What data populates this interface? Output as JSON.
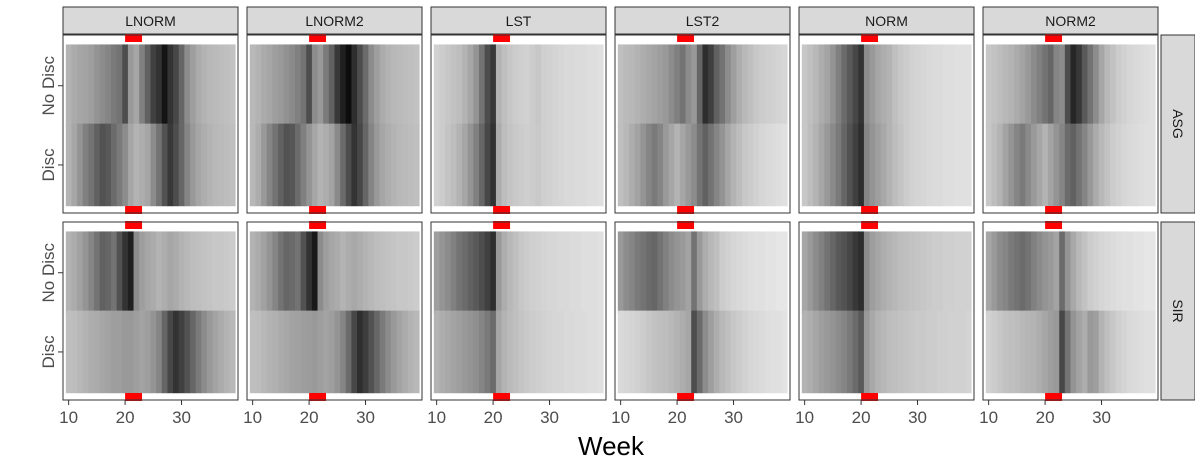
{
  "chart_data": {
    "type": "heatmap",
    "xlabel": "Week",
    "ylabel": "",
    "x_ticks": [
      10,
      20,
      30
    ],
    "xlim": [
      9,
      40
    ],
    "week_range": [
      10,
      39
    ],
    "highlight_window": [
      20,
      23
    ],
    "highlight_color": "#ff0000",
    "columns": [
      "LNORM",
      "LNORM2",
      "LST",
      "LST2",
      "NORM",
      "NORM2"
    ],
    "rows": [
      "ASG",
      "SIR"
    ],
    "row_categories": [
      "No Disc",
      "Disc"
    ],
    "colors": {
      "strip_bg": "#d9d9d9",
      "panel_border": "#333333",
      "cell_low": "#ffffff",
      "cell_high": "#000000"
    },
    "value_scale": "0 = white, 1 = black",
    "panels": {
      "ASG": {
        "LNORM": {
          "No Disc": [
            0.3,
            0.33,
            0.35,
            0.36,
            0.38,
            0.42,
            0.45,
            0.48,
            0.52,
            0.55,
            0.7,
            0.4,
            0.35,
            0.5,
            0.62,
            0.75,
            0.8,
            0.92,
            0.8,
            0.72,
            0.6,
            0.45,
            0.38,
            0.33,
            0.3,
            0.28,
            0.27,
            0.26,
            0.25,
            0.24
          ],
          "Disc": [
            0.3,
            0.35,
            0.42,
            0.5,
            0.55,
            0.62,
            0.68,
            0.65,
            0.58,
            0.52,
            0.45,
            0.35,
            0.3,
            0.32,
            0.35,
            0.45,
            0.55,
            0.68,
            0.78,
            0.7,
            0.6,
            0.48,
            0.4,
            0.35,
            0.32,
            0.3,
            0.28,
            0.27,
            0.26,
            0.25
          ]
        },
        "LNORM2": {
          "No Disc": [
            0.28,
            0.3,
            0.33,
            0.35,
            0.38,
            0.4,
            0.43,
            0.46,
            0.5,
            0.55,
            0.7,
            0.45,
            0.4,
            0.52,
            0.62,
            0.78,
            0.88,
            0.95,
            0.82,
            0.7,
            0.58,
            0.45,
            0.38,
            0.33,
            0.3,
            0.28,
            0.27,
            0.26,
            0.25,
            0.24
          ],
          "Disc": [
            0.28,
            0.32,
            0.4,
            0.48,
            0.55,
            0.62,
            0.68,
            0.66,
            0.58,
            0.5,
            0.42,
            0.35,
            0.3,
            0.32,
            0.36,
            0.46,
            0.58,
            0.7,
            0.8,
            0.72,
            0.6,
            0.48,
            0.4,
            0.35,
            0.32,
            0.3,
            0.28,
            0.27,
            0.26,
            0.25
          ]
        },
        "LST": {
          "No Disc": [
            0.18,
            0.2,
            0.22,
            0.24,
            0.26,
            0.3,
            0.35,
            0.42,
            0.55,
            0.7,
            0.78,
            0.3,
            0.25,
            0.22,
            0.2,
            0.19,
            0.18,
            0.2,
            0.22,
            0.19,
            0.18,
            0.17,
            0.16,
            0.15,
            0.15,
            0.14,
            0.14,
            0.13,
            0.13,
            0.12
          ],
          "Disc": [
            0.18,
            0.2,
            0.23,
            0.26,
            0.3,
            0.35,
            0.42,
            0.5,
            0.6,
            0.72,
            0.8,
            0.32,
            0.26,
            0.23,
            0.21,
            0.2,
            0.19,
            0.2,
            0.21,
            0.19,
            0.18,
            0.17,
            0.16,
            0.15,
            0.15,
            0.14,
            0.14,
            0.13,
            0.13,
            0.12
          ]
        },
        "LST2": {
          "No Disc": [
            0.25,
            0.27,
            0.28,
            0.3,
            0.32,
            0.34,
            0.36,
            0.38,
            0.4,
            0.45,
            0.5,
            0.55,
            0.45,
            0.4,
            0.6,
            0.82,
            0.75,
            0.62,
            0.55,
            0.45,
            0.38,
            0.32,
            0.28,
            0.25,
            0.22,
            0.2,
            0.19,
            0.18,
            0.17,
            0.16
          ],
          "Disc": [
            0.25,
            0.28,
            0.32,
            0.36,
            0.42,
            0.48,
            0.52,
            0.48,
            0.4,
            0.35,
            0.3,
            0.35,
            0.4,
            0.45,
            0.55,
            0.62,
            0.55,
            0.48,
            0.42,
            0.35,
            0.3,
            0.26,
            0.22,
            0.2,
            0.18,
            0.16,
            0.15,
            0.14,
            0.13,
            0.12
          ]
        },
        "NORM": {
          "No Disc": [
            0.22,
            0.25,
            0.28,
            0.32,
            0.36,
            0.42,
            0.5,
            0.58,
            0.65,
            0.72,
            0.8,
            0.45,
            0.4,
            0.35,
            0.32,
            0.3,
            0.25,
            0.22,
            0.2,
            0.18,
            0.17,
            0.16,
            0.15,
            0.14,
            0.14,
            0.13,
            0.13,
            0.12,
            0.12,
            0.12
          ],
          "Disc": [
            0.22,
            0.26,
            0.3,
            0.35,
            0.4,
            0.46,
            0.52,
            0.6,
            0.68,
            0.75,
            0.82,
            0.48,
            0.42,
            0.38,
            0.34,
            0.3,
            0.26,
            0.23,
            0.2,
            0.18,
            0.17,
            0.16,
            0.15,
            0.14,
            0.14,
            0.13,
            0.13,
            0.12,
            0.12,
            0.12
          ]
        },
        "NORM2": {
          "No Disc": [
            0.22,
            0.24,
            0.26,
            0.28,
            0.3,
            0.33,
            0.36,
            0.4,
            0.45,
            0.5,
            0.55,
            0.6,
            0.48,
            0.45,
            0.7,
            0.85,
            0.78,
            0.65,
            0.55,
            0.45,
            0.35,
            0.28,
            0.24,
            0.2,
            0.18,
            0.16,
            0.15,
            0.14,
            0.13,
            0.12
          ],
          "Disc": [
            0.22,
            0.26,
            0.3,
            0.36,
            0.42,
            0.48,
            0.52,
            0.46,
            0.4,
            0.35,
            0.3,
            0.36,
            0.42,
            0.48,
            0.58,
            0.62,
            0.55,
            0.48,
            0.4,
            0.33,
            0.28,
            0.24,
            0.2,
            0.18,
            0.16,
            0.15,
            0.14,
            0.13,
            0.12,
            0.12
          ]
        }
      },
      "SIR": {
        "LNORM": {
          "No Disc": [
            0.3,
            0.33,
            0.37,
            0.42,
            0.48,
            0.55,
            0.62,
            0.6,
            0.55,
            0.68,
            0.8,
            0.88,
            0.45,
            0.38,
            0.35,
            0.33,
            0.3,
            0.32,
            0.35,
            0.33,
            0.3,
            0.28,
            0.26,
            0.25,
            0.24,
            0.23,
            0.22,
            0.22,
            0.21,
            0.2
          ],
          "Disc": [
            0.25,
            0.26,
            0.28,
            0.3,
            0.32,
            0.33,
            0.35,
            0.36,
            0.38,
            0.38,
            0.4,
            0.4,
            0.38,
            0.36,
            0.38,
            0.42,
            0.48,
            0.6,
            0.72,
            0.8,
            0.75,
            0.68,
            0.6,
            0.52,
            0.45,
            0.4,
            0.36,
            0.33,
            0.3,
            0.28
          ]
        },
        "LNORM2": {
          "No Disc": [
            0.3,
            0.33,
            0.37,
            0.42,
            0.48,
            0.55,
            0.6,
            0.58,
            0.55,
            0.68,
            0.8,
            0.9,
            0.45,
            0.38,
            0.35,
            0.33,
            0.3,
            0.32,
            0.34,
            0.32,
            0.3,
            0.28,
            0.26,
            0.25,
            0.24,
            0.23,
            0.22,
            0.22,
            0.21,
            0.2
          ],
          "Disc": [
            0.25,
            0.26,
            0.28,
            0.3,
            0.31,
            0.33,
            0.34,
            0.36,
            0.37,
            0.38,
            0.39,
            0.4,
            0.38,
            0.36,
            0.38,
            0.42,
            0.48,
            0.58,
            0.72,
            0.82,
            0.76,
            0.68,
            0.6,
            0.52,
            0.45,
            0.4,
            0.36,
            0.33,
            0.3,
            0.28
          ]
        },
        "LST": {
          "No Disc": [
            0.38,
            0.42,
            0.45,
            0.5,
            0.55,
            0.58,
            0.62,
            0.65,
            0.7,
            0.75,
            0.82,
            0.4,
            0.32,
            0.28,
            0.25,
            0.22,
            0.2,
            0.19,
            0.18,
            0.17,
            0.16,
            0.16,
            0.15,
            0.15,
            0.14,
            0.14,
            0.13,
            0.13,
            0.13,
            0.12
          ],
          "Disc": [
            0.3,
            0.32,
            0.34,
            0.36,
            0.38,
            0.4,
            0.42,
            0.44,
            0.48,
            0.52,
            0.58,
            0.35,
            0.3,
            0.27,
            0.25,
            0.23,
            0.21,
            0.2,
            0.19,
            0.18,
            0.17,
            0.16,
            0.16,
            0.15,
            0.15,
            0.14,
            0.14,
            0.13,
            0.13,
            0.12
          ]
        },
        "LST2": {
          "No Disc": [
            0.4,
            0.45,
            0.48,
            0.52,
            0.55,
            0.58,
            0.6,
            0.55,
            0.5,
            0.45,
            0.42,
            0.4,
            0.36,
            0.55,
            0.4,
            0.32,
            0.28,
            0.25,
            0.2,
            0.18,
            0.16,
            0.15,
            0.14,
            0.13,
            0.12,
            0.12,
            0.11,
            0.11,
            0.1,
            0.1
          ],
          "Disc": [
            0.15,
            0.16,
            0.17,
            0.18,
            0.2,
            0.22,
            0.24,
            0.25,
            0.26,
            0.28,
            0.3,
            0.32,
            0.35,
            0.7,
            0.58,
            0.45,
            0.38,
            0.32,
            0.28,
            0.25,
            0.22,
            0.2,
            0.18,
            0.16,
            0.15,
            0.14,
            0.13,
            0.12,
            0.12,
            0.11
          ]
        },
        "NORM": {
          "No Disc": [
            0.35,
            0.4,
            0.45,
            0.5,
            0.55,
            0.6,
            0.65,
            0.68,
            0.72,
            0.78,
            0.82,
            0.45,
            0.38,
            0.35,
            0.32,
            0.3,
            0.28,
            0.26,
            0.25,
            0.24,
            0.23,
            0.22,
            0.21,
            0.2,
            0.2,
            0.19,
            0.19,
            0.18,
            0.18,
            0.18
          ],
          "Disc": [
            0.3,
            0.32,
            0.35,
            0.38,
            0.4,
            0.42,
            0.45,
            0.48,
            0.52,
            0.58,
            0.65,
            0.4,
            0.34,
            0.3,
            0.28,
            0.26,
            0.25,
            0.24,
            0.23,
            0.22,
            0.21,
            0.21,
            0.2,
            0.2,
            0.19,
            0.19,
            0.18,
            0.18,
            0.18,
            0.17
          ]
        },
        "NORM2": {
          "No Disc": [
            0.35,
            0.4,
            0.45,
            0.48,
            0.52,
            0.55,
            0.58,
            0.55,
            0.5,
            0.46,
            0.42,
            0.4,
            0.36,
            0.58,
            0.42,
            0.34,
            0.28,
            0.24,
            0.2,
            0.18,
            0.16,
            0.15,
            0.14,
            0.13,
            0.12,
            0.12,
            0.11,
            0.11,
            0.1,
            0.1
          ],
          "Disc": [
            0.18,
            0.2,
            0.22,
            0.24,
            0.25,
            0.26,
            0.28,
            0.29,
            0.3,
            0.32,
            0.35,
            0.38,
            0.4,
            0.72,
            0.55,
            0.42,
            0.36,
            0.32,
            0.4,
            0.38,
            0.3,
            0.25,
            0.22,
            0.19,
            0.17,
            0.15,
            0.14,
            0.13,
            0.12,
            0.12
          ]
        }
      }
    }
  }
}
